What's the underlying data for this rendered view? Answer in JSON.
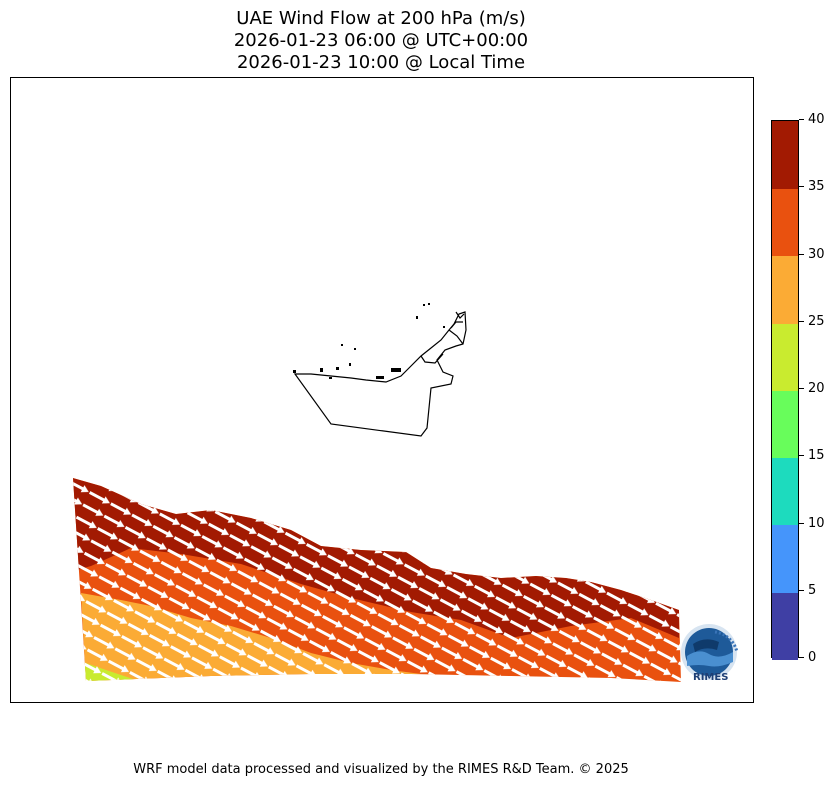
{
  "title": {
    "line1": "UAE Wind Flow at 200 hPa (m/s)",
    "line2": "2026-01-23 06:00 @ UTC+00:00",
    "line3": "2026-01-23 10:00 @ Local Time"
  },
  "colorbar": {
    "ticks": [
      "0",
      "5",
      "10",
      "15",
      "20",
      "25",
      "30",
      "35",
      "40"
    ],
    "colors": [
      "#3f3fa4",
      "#4595fb",
      "#1ddbbe",
      "#68fd5b",
      "#c9eb2f",
      "#fbab35",
      "#e9510f",
      "#a21a02"
    ]
  },
  "logo": {
    "text": "RIMES"
  },
  "footer": "WRF model data processed and visualized by the RIMES R&D Team. © 2025"
}
